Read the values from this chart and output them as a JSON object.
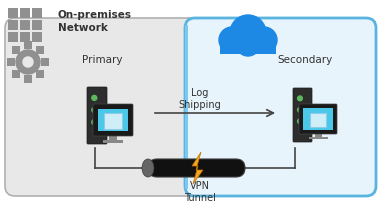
{
  "bg_color": "#ffffff",
  "onprem_box_color": "#e8e8e8",
  "onprem_box_edge": "#b0b0b0",
  "azure_box_color": "#e8f4fc",
  "azure_box_edge": "#5ab4e0",
  "title_onprem": "On-premises\nNetwork",
  "title_primary": "Primary",
  "title_secondary": "Secondary",
  "label_log": "Log\nShipping",
  "label_vpn": "VPN\nTunnel",
  "arrow_color": "#444444",
  "text_color": "#333333",
  "gear_color": "#909090",
  "grid_color": "#909090",
  "cloud_color": "#1e88e5",
  "bolt_color": "#f5a623",
  "cable_color": "#111111",
  "server_dark": "#2d2d2d",
  "screen_cyan": "#4bc8e8",
  "screen_box": "#c0e8f8",
  "led_green": "#5cb85c",
  "stand_color": "#888888",
  "line_color": "#444444",
  "azure_left_bar": "#7dc8f0"
}
